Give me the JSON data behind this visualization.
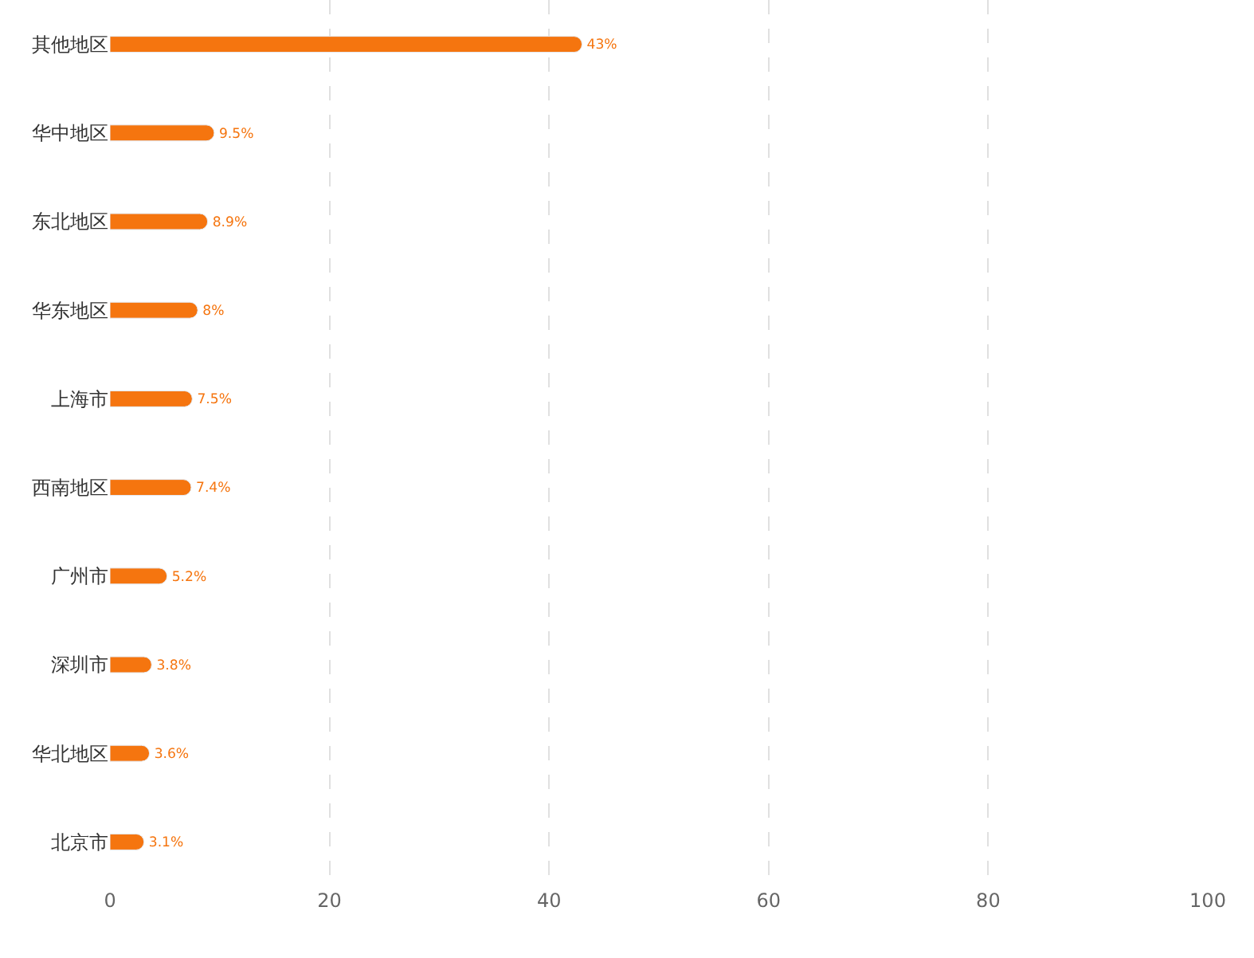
{
  "chart_data": {
    "type": "bar",
    "orientation": "horizontal",
    "categories": [
      "其他地区",
      "华中地区",
      "东北地区",
      "华东地区",
      "上海市",
      "西南地区",
      "广州市",
      "深圳市",
      "华北地区",
      "北京市"
    ],
    "values": [
      43,
      9.5,
      8.9,
      8,
      7.5,
      7.4,
      5.2,
      3.8,
      3.6,
      3.1
    ],
    "value_labels": [
      "43%",
      "9.5%",
      "8.9%",
      "8%",
      "7.5%",
      "7.4%",
      "5.2%",
      "3.8%",
      "3.6%",
      "3.1%"
    ],
    "color": "#f5750f",
    "xlim": [
      0,
      100
    ],
    "xticks": [
      0,
      20,
      40,
      60,
      80,
      100
    ],
    "grid": "x",
    "legend": false
  }
}
